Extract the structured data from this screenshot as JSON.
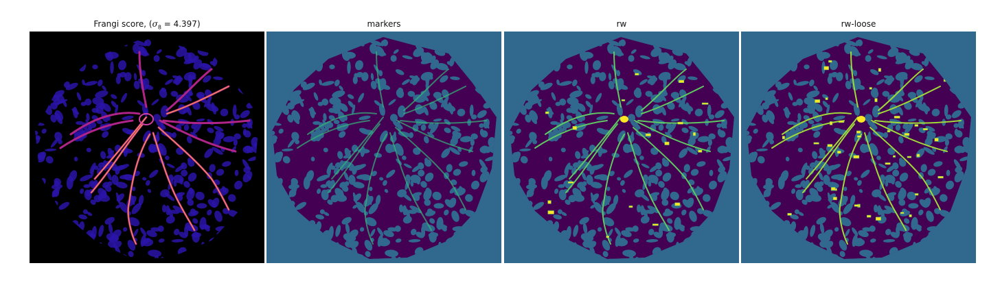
{
  "panels": [
    {
      "id": "frangi",
      "title_prefix": "Frangi score, (",
      "sigma_symbol": "σ",
      "sigma_sub": "8",
      "title_suffix": " = 4.397)",
      "background": "#000000",
      "blob": "#1f0c8a",
      "vessel": "#f58a5a",
      "hot": "#fde6a0"
    },
    {
      "id": "markers",
      "title": "markers",
      "background": "#31688e",
      "blob": "#440154",
      "vessel": "#35b779",
      "hot": "#35b779"
    },
    {
      "id": "rw",
      "title": "rw",
      "background": "#31688e",
      "blob": "#440154",
      "vessel": "#5ec962",
      "hot": "#fde725"
    },
    {
      "id": "rw-loose",
      "title": "rw-loose",
      "background": "#31688e",
      "blob": "#440154",
      "vessel": "#a0da39",
      "hot": "#fde725"
    }
  ]
}
